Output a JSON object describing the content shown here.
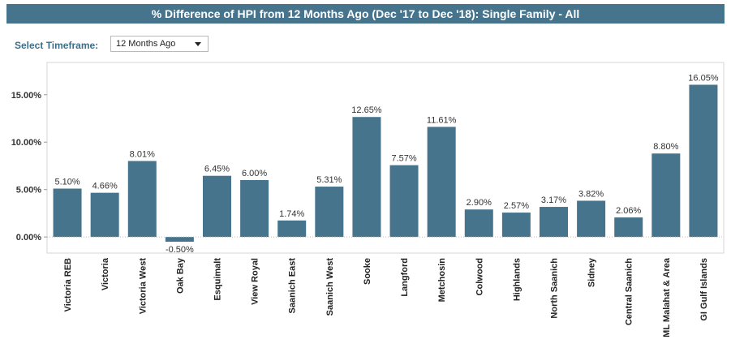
{
  "header": {
    "title": "% Difference of HPI from 12 Months Ago (Dec '17 to Dec '18): Single Family - All"
  },
  "timeframe": {
    "label": "Select Timeframe:",
    "selected": "12 Months Ago"
  },
  "colors": {
    "bar": "#47748d",
    "title_bg": "#47748d",
    "label_accent": "#3f6d87"
  },
  "chart_data": {
    "type": "bar",
    "title": "",
    "xlabel": "",
    "ylabel": "",
    "categories": [
      "Victoria REB",
      "Victoria",
      "Victoria West",
      "Oak Bay",
      "Esquimalt",
      "View Royal",
      "Saanich East",
      "Saanich West",
      "Sooke",
      "Langford",
      "Metchosin",
      "Colwood",
      "Highlands",
      "North Saanich",
      "Sidney",
      "Central Saanich",
      "ML Malahat & Area",
      "GI Gulf Islands"
    ],
    "values": [
      5.1,
      4.66,
      8.01,
      -0.5,
      6.45,
      6.0,
      1.74,
      5.31,
      12.65,
      7.57,
      11.61,
      2.9,
      2.57,
      3.17,
      3.82,
      2.06,
      8.8,
      16.05
    ],
    "value_labels": [
      "5.10%",
      "4.66%",
      "8.01%",
      "-0.50%",
      "6.45%",
      "6.00%",
      "1.74%",
      "5.31%",
      "12.65%",
      "7.57%",
      "11.61%",
      "2.90%",
      "2.57%",
      "3.17%",
      "3.82%",
      "2.06%",
      "8.80%",
      "16.05%"
    ],
    "yticks": [
      0,
      5,
      10,
      15
    ],
    "ytick_labels": [
      "0.00%",
      "5.00%",
      "10.00%",
      "15.00%"
    ],
    "ylim": [
      -1.7,
      18.4
    ],
    "grid": false,
    "zero_line": "dotted",
    "legend": "none"
  }
}
